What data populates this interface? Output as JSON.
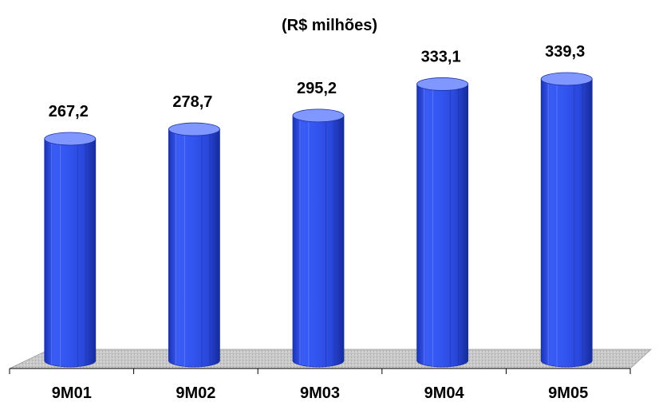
{
  "chart_data": {
    "type": "bar",
    "title": "(R$ milhões)",
    "xlabel": "",
    "ylabel": "",
    "categories": [
      "9M01",
      "9M02",
      "9M03",
      "9M04",
      "9M05"
    ],
    "values": [
      267.2,
      278.7,
      295.2,
      333.1,
      339.3
    ],
    "value_labels": [
      "267,2",
      "278,7",
      "295,2",
      "333,1",
      "339,3"
    ],
    "ylim": [
      0,
      339.3
    ],
    "grid": false,
    "legend": "none",
    "colors": {
      "bar": "#3355f0",
      "bar_light": "#7f97ff",
      "bar_dark": "#1b33b8",
      "floor": "#c8c8c8"
    }
  }
}
